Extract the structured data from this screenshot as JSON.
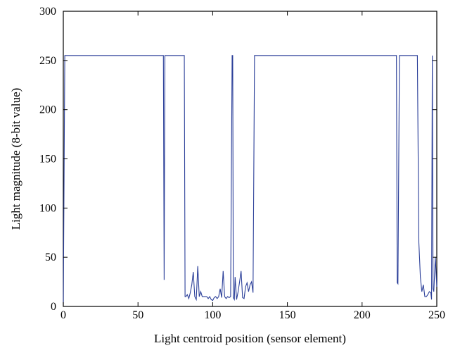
{
  "chart_data": {
    "type": "line",
    "title": "",
    "xlabel": "Light centroid position (sensor element)",
    "ylabel": "Light magnitude (8-bit value)",
    "xlim": [
      0,
      250
    ],
    "ylim": [
      0,
      300
    ],
    "xticks": [
      0,
      50,
      100,
      150,
      200,
      250
    ],
    "yticks": [
      0,
      50,
      100,
      150,
      200,
      250,
      300
    ],
    "grid": false,
    "legend": "none",
    "line_color": "#2b3f99",
    "series": [
      {
        "x": [
          0,
          1,
          2,
          67,
          67.5,
          68,
          68.5,
          80,
          81,
          81.5,
          82,
          83,
          84,
          85,
          86,
          87,
          88,
          89,
          90,
          91,
          92,
          93,
          94,
          95,
          96,
          97,
          98,
          99,
          100,
          101,
          102,
          103,
          104,
          105,
          106,
          107,
          108,
          109,
          110,
          111,
          112,
          113,
          113.4,
          113.8,
          114.5,
          115,
          116,
          117,
          118,
          119,
          120,
          121,
          122,
          123,
          124,
          125,
          126,
          127,
          128,
          223,
          223.5,
          224,
          225,
          236,
          237,
          238,
          239,
          240,
          241,
          242,
          243,
          244,
          245,
          246,
          246.5,
          247,
          247.5,
          248,
          249,
          250
        ],
        "y": [
          2,
          255,
          255,
          255,
          27,
          255,
          255,
          255,
          255,
          10,
          10,
          12,
          8,
          14,
          22,
          35,
          10,
          7,
          41,
          10,
          15,
          10,
          10,
          10,
          10,
          8,
          10,
          7,
          6,
          9,
          10,
          8,
          10,
          18,
          9,
          36,
          10,
          8,
          10,
          9,
          10,
          255,
          255,
          9,
          7,
          30,
          7,
          15,
          25,
          36,
          9,
          8,
          20,
          24,
          15,
          22,
          25,
          14,
          255,
          255,
          24,
          23,
          255,
          255,
          255,
          65,
          30,
          15,
          22,
          10,
          10,
          12,
          15,
          14,
          7,
          255,
          18,
          15,
          50,
          20
        ]
      }
    ]
  }
}
